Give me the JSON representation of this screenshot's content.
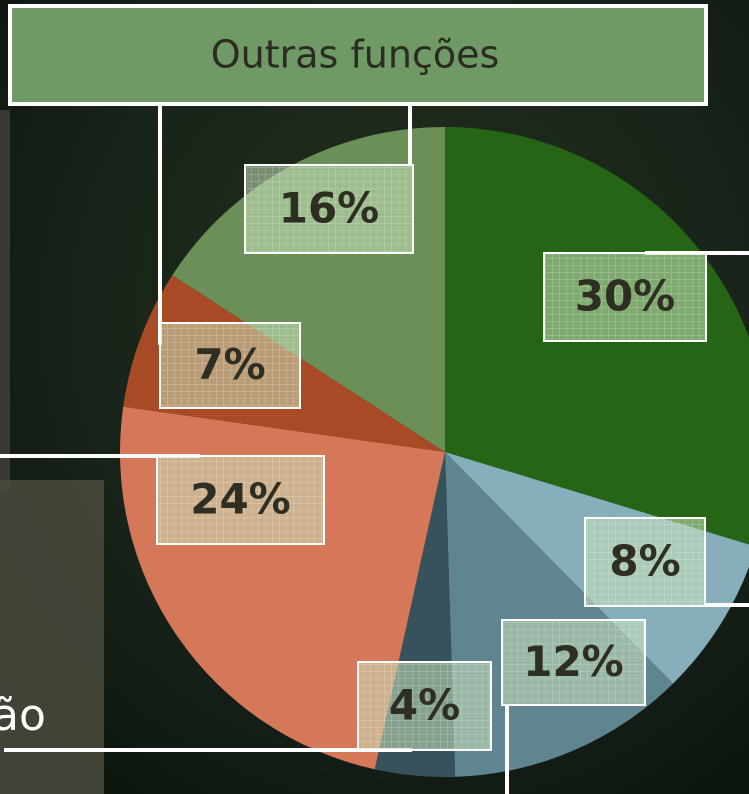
{
  "chart_data": {
    "type": "pie",
    "categories": [
      null,
      null,
      null,
      null,
      null,
      null,
      "Outras funções"
    ],
    "values": [
      30,
      8,
      12,
      4,
      24,
      7,
      16
    ],
    "value_labels": [
      "30%",
      "8%",
      "12%",
      "4%",
      "24%",
      "7%",
      "16%"
    ],
    "colors": [
      "#256515",
      "#86aebb",
      "#5f8590",
      "#36525c",
      "#d5785a",
      "#a84a26",
      "#6a9058"
    ],
    "annotations": [
      "ão"
    ]
  }
}
